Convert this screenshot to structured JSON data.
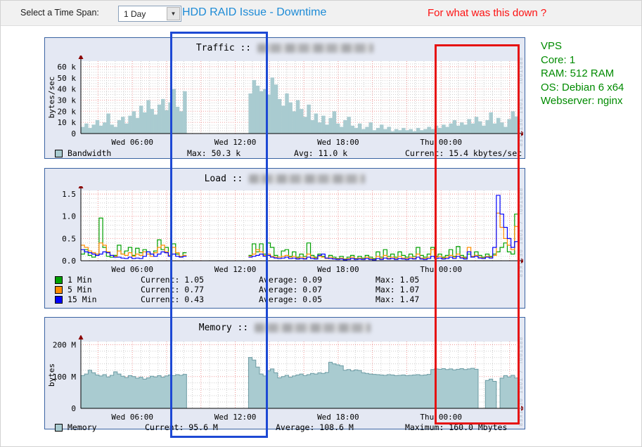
{
  "topbar": {
    "timespan_label": "Select a Time Span:",
    "timespan_value": "1 Day",
    "title": "HDD RAID Issue - Downtime",
    "question": "For what was this down ?"
  },
  "watermark": "RRDTOOL / TOBI OETIKER",
  "info": {
    "lines": [
      "VPS",
      "Core: 1",
      "RAM: 512 RAM",
      "OS: Debian 6 x64",
      "Webserver: nginx"
    ],
    "color": "#008b00"
  },
  "colors": {
    "area_fill": "#a9cbd0",
    "area_edge": "#6d9ca4",
    "load_1min": "#00a000",
    "load_5min": "#ff8c00",
    "load_15min": "#0000ff",
    "grid_major": "#f09a9a",
    "grid_minor": "#cfcfcf",
    "arrow": "#8b0000",
    "title_link": "#1d8bd6",
    "annotation_blue": "#1d49d4",
    "annotation_red": "#e61212"
  },
  "chart_data": [
    {
      "type": "bar",
      "title": "Traffic ::",
      "ylabel": "bytes/sec",
      "ymax": 65,
      "ytick_vals": [
        0,
        10,
        20,
        30,
        40,
        50,
        60
      ],
      "ytick_labels": [
        "0",
        "10 k",
        "20 k",
        "30 k",
        "40 k",
        "50 k",
        "60 k"
      ],
      "y_major_step": 10,
      "y_minor_step": 2.5,
      "hours_total": 25.5,
      "x_ticks": [
        {
          "hour": 3,
          "label": "Wed 06:00"
        },
        {
          "hour": 9,
          "label": "Wed 12:00"
        },
        {
          "hour": 15,
          "label": "Wed 18:00"
        },
        {
          "hour": 21,
          "label": "Thu 00:00"
        }
      ],
      "series": [
        {
          "name": "Bandwidth",
          "color": "#a9cbd0",
          "values": [
            6,
            9,
            5,
            8,
            12,
            7,
            10,
            18,
            8,
            6,
            12,
            15,
            9,
            16,
            20,
            14,
            25,
            19,
            30,
            22,
            17,
            26,
            31,
            21,
            28,
            40,
            24,
            20,
            38,
            null,
            null,
            null,
            null,
            null,
            null,
            null,
            null,
            null,
            null,
            null,
            null,
            null,
            null,
            null,
            null,
            null,
            36,
            48,
            43,
            38,
            40,
            35,
            50.3,
            44,
            31,
            25,
            36,
            28,
            20,
            30,
            22,
            15,
            26,
            12,
            18,
            10,
            16,
            8,
            14,
            20,
            9,
            6,
            12,
            15,
            7,
            5,
            9,
            4,
            6,
            10,
            3,
            5,
            8,
            4,
            6,
            2,
            4,
            3,
            5,
            3,
            4,
            2,
            5,
            3,
            4,
            6,
            4,
            7,
            5,
            8,
            6,
            9,
            12,
            7,
            10,
            8,
            13,
            9,
            15,
            11,
            7,
            12,
            19,
            9,
            14,
            10,
            6,
            13,
            20,
            15.4
          ]
        }
      ],
      "legend_rows": [
        {
          "swatch": "#a9cbd0",
          "label": "Bandwidth",
          "items": [
            "Max:  50.3 k",
            "Avg:  11.0 k",
            "Current:  15.4 kbytes/sec"
          ]
        }
      ]
    },
    {
      "type": "line",
      "title": "Load ::",
      "ylabel": "",
      "ymax": 1.58,
      "ytick_vals": [
        0,
        0.5,
        1.0,
        1.5
      ],
      "ytick_labels": [
        "0.0",
        "0.5",
        "1.0",
        "1.5"
      ],
      "y_major_step": 0.5,
      "y_minor_step": 0.1,
      "hours_total": 25.5,
      "x_ticks": [
        {
          "hour": 3,
          "label": "Wed 06:00"
        },
        {
          "hour": 9,
          "label": "Wed 12:00"
        },
        {
          "hour": 15,
          "label": "Wed 18:00"
        },
        {
          "hour": 21,
          "label": "Thu 00:00"
        }
      ],
      "series": [
        {
          "name": "1 Min",
          "color": "#00a000",
          "values": [
            0.15,
            0.25,
            0.12,
            0.08,
            0.15,
            0.96,
            0.3,
            0.1,
            0.08,
            0.12,
            0.35,
            0.15,
            0.22,
            0.3,
            0.12,
            0.28,
            0.18,
            0.25,
            0.2,
            0.15,
            0.22,
            0.47,
            0.25,
            0.3,
            0.12,
            0.38,
            0.15,
            0.1,
            0.18,
            null,
            null,
            null,
            null,
            null,
            null,
            null,
            null,
            null,
            null,
            null,
            null,
            null,
            null,
            null,
            null,
            null,
            0.12,
            0.38,
            0.2,
            0.38,
            0.15,
            0.4,
            0.3,
            0.12,
            0.08,
            0.22,
            0.25,
            0.1,
            0.2,
            0.08,
            0.15,
            0.1,
            0.4,
            0.12,
            0.08,
            0.15,
            0.1,
            0.06,
            0.12,
            0.08,
            0.05,
            0.1,
            0.04,
            0.08,
            0.12,
            0.05,
            0.1,
            0.06,
            0.12,
            0.08,
            0.05,
            0.2,
            0.08,
            0.25,
            0.1,
            0.15,
            0.08,
            0.2,
            0.12,
            0.08,
            0.15,
            0.1,
            0.3,
            0.12,
            0.08,
            0.15,
            0.3,
            0.1,
            0.15,
            0.08,
            0.12,
            0.25,
            0.1,
            0.32,
            0.12,
            0.08,
            0.15,
            0.1,
            0.2,
            0.12,
            0.08,
            0.15,
            0.1,
            0.15,
            0.2,
            0.3,
            0.4,
            0.2,
            0.15,
            1.05
          ]
        },
        {
          "name": "5 Min",
          "color": "#ff8c00",
          "values": [
            0.35,
            0.3,
            0.22,
            0.18,
            0.15,
            0.4,
            0.35,
            0.2,
            0.12,
            0.1,
            0.22,
            0.15,
            0.12,
            0.18,
            0.1,
            0.15,
            0.12,
            0.2,
            0.15,
            0.1,
            0.18,
            0.3,
            0.35,
            0.2,
            0.12,
            0.3,
            0.18,
            0.1,
            0.12,
            null,
            null,
            null,
            null,
            null,
            null,
            null,
            null,
            null,
            null,
            null,
            null,
            null,
            null,
            null,
            null,
            null,
            0.1,
            0.15,
            0.25,
            0.2,
            0.12,
            0.15,
            0.1,
            0.08,
            0.08,
            0.1,
            0.12,
            0.08,
            0.1,
            0.06,
            0.08,
            0.06,
            0.15,
            0.08,
            0.06,
            0.1,
            0.08,
            0.05,
            0.08,
            0.05,
            0.04,
            0.06,
            0.03,
            0.05,
            0.08,
            0.04,
            0.06,
            0.04,
            0.08,
            0.05,
            0.03,
            0.1,
            0.05,
            0.12,
            0.06,
            0.08,
            0.05,
            0.1,
            0.06,
            0.05,
            0.08,
            0.06,
            0.15,
            0.06,
            0.05,
            0.08,
            0.25,
            0.08,
            0.1,
            0.06,
            0.08,
            0.12,
            0.08,
            0.15,
            0.08,
            0.06,
            0.3,
            0.1,
            0.12,
            0.08,
            0.06,
            0.1,
            0.08,
            0.12,
            1.07,
            0.75,
            0.5,
            0.35,
            0.25,
            0.77
          ]
        },
        {
          "name": "15 Min",
          "color": "#0000ff",
          "values": [
            0.25,
            0.2,
            0.18,
            0.15,
            0.12,
            0.15,
            0.2,
            0.18,
            0.12,
            0.08,
            0.08,
            0.06,
            0.05,
            0.08,
            0.05,
            0.06,
            0.05,
            0.1,
            0.2,
            0.15,
            0.1,
            0.15,
            0.2,
            0.18,
            0.1,
            0.15,
            0.1,
            0.08,
            0.1,
            null,
            null,
            null,
            null,
            null,
            null,
            null,
            null,
            null,
            null,
            null,
            null,
            null,
            null,
            null,
            null,
            null,
            0.08,
            0.1,
            0.12,
            0.15,
            0.1,
            0.12,
            0.08,
            0.06,
            0.05,
            0.06,
            0.08,
            0.05,
            0.06,
            0.04,
            0.05,
            0.04,
            0.08,
            0.05,
            0.04,
            0.12,
            0.15,
            0.06,
            0.05,
            0.04,
            0.03,
            0.04,
            0.02,
            0.03,
            0.05,
            0.03,
            0.04,
            0.03,
            0.05,
            0.03,
            0.02,
            0.05,
            0.03,
            0.06,
            0.04,
            0.05,
            0.03,
            0.05,
            0.04,
            0.03,
            0.05,
            0.04,
            0.08,
            0.04,
            0.03,
            0.05,
            0.1,
            0.05,
            0.06,
            0.04,
            0.05,
            0.08,
            0.05,
            0.1,
            0.06,
            0.04,
            0.2,
            0.08,
            0.1,
            0.06,
            0.05,
            0.08,
            0.06,
            0.3,
            1.47,
            1.05,
            0.75,
            0.5,
            0.3,
            0.43
          ]
        }
      ],
      "legend_rows": [
        {
          "swatch": "#00a000",
          "label": "1 Min",
          "items": [
            "Current:  1.05",
            "Average:  0.09",
            "Max:  1.05"
          ]
        },
        {
          "swatch": "#ff8c00",
          "label": "5 Min",
          "items": [
            "Current:  0.77",
            "Average:  0.07",
            "Max:  1.07"
          ]
        },
        {
          "swatch": "#0000ff",
          "label": "15 Min",
          "items": [
            "Current:  0.43",
            "Average:  0.05",
            "Max:  1.47"
          ]
        }
      ]
    },
    {
      "type": "area",
      "title": "Memory ::",
      "ylabel": "bytes",
      "ymax": 210,
      "ytick_vals": [
        0,
        100,
        200
      ],
      "ytick_labels": [
        "0",
        "100 M",
        "200 M"
      ],
      "y_major_step": 100,
      "y_minor_step": 20,
      "hours_total": 25.5,
      "x_ticks": [
        {
          "hour": 3,
          "label": "Wed 06:00"
        },
        {
          "hour": 9,
          "label": "Wed 12:00"
        },
        {
          "hour": 15,
          "label": "Wed 18:00"
        },
        {
          "hour": 21,
          "label": "Thu 00:00"
        }
      ],
      "series": [
        {
          "name": "Memory",
          "color": "#a9cbd0",
          "values": [
            103,
            108,
            120,
            112,
            105,
            102,
            106,
            99,
            104,
            115,
            108,
            101,
            97,
            103,
            100,
            95,
            98,
            92,
            96,
            101,
            99,
            103,
            98,
            102,
            105,
            103,
            106,
            104,
            107,
            null,
            null,
            null,
            null,
            null,
            null,
            null,
            null,
            null,
            null,
            null,
            null,
            null,
            null,
            null,
            null,
            null,
            160,
            152,
            130,
            108,
            102,
            118,
            124,
            112,
            96,
            100,
            104,
            98,
            102,
            105,
            108,
            103,
            106,
            110,
            108,
            112,
            110,
            113,
            145,
            140,
            137,
            134,
            120,
            122,
            118,
            121,
            119,
            112,
            110,
            108,
            107,
            106,
            105,
            104,
            106,
            105,
            103,
            104,
            105,
            103,
            104,
            105,
            106,
            104,
            105,
            107,
            122,
            124,
            123,
            125,
            122,
            124,
            121,
            123,
            125,
            122,
            124,
            126,
            123,
            null,
            null,
            88,
            92,
            85,
            null,
            95,
            103,
            99,
            104,
            95.6
          ]
        }
      ],
      "legend_rows": [
        {
          "swatch": "#a9cbd0",
          "label": "Memory",
          "items": [
            "Current:  95.6 M",
            "Average: 108.6 M",
            "Maximum: 160.0 Mbytes"
          ]
        }
      ]
    }
  ]
}
